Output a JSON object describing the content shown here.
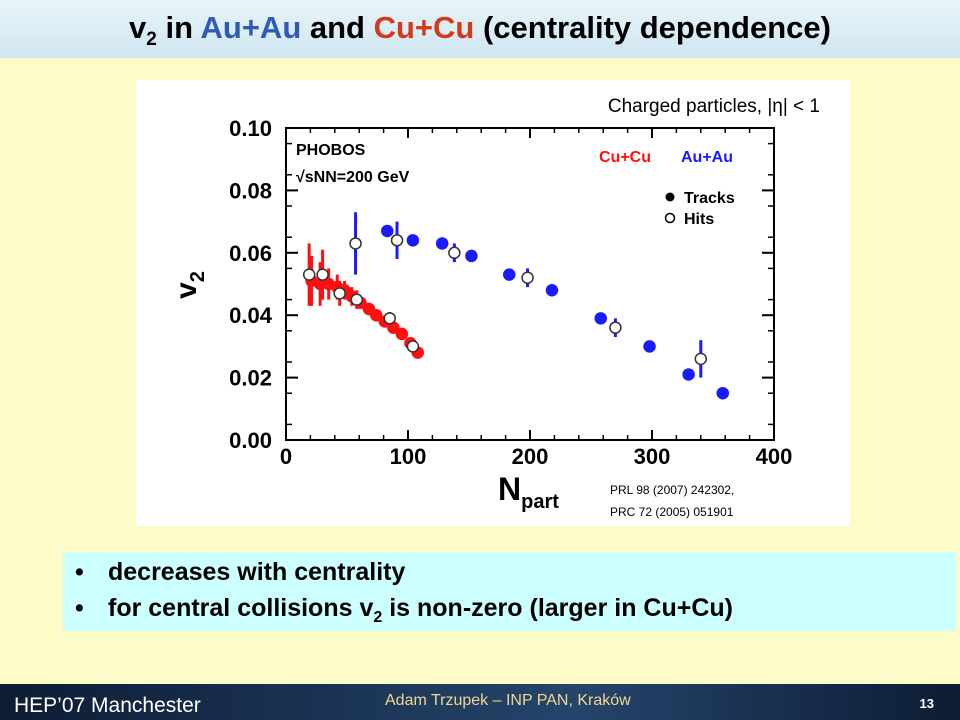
{
  "slide": {
    "title_prefix": "v",
    "title_sub": "2",
    "title_in": " in ",
    "title_auau": "Au+Au",
    "title_and": " and ",
    "title_cucu": "Cu+Cu",
    "title_rest": " (centrality dependence)"
  },
  "colors": {
    "auau": "#2f5bb5",
    "cucu": "#d43a1a",
    "blue_series": "#1a1aff",
    "red_series": "#ff1010"
  },
  "chart_data": {
    "type": "scatter",
    "header_note": "Charged particles, |η| < 1",
    "experiment": "PHOBOS",
    "energy": "√sNN=200 GeV",
    "xlabel": "N",
    "xlabel_sub": "part",
    "ylabel": "v",
    "ylabel_sub": "2",
    "xlim": [
      0,
      400
    ],
    "ylim": [
      0,
      0.1
    ],
    "x_ticks": [
      0,
      100,
      200,
      300,
      400
    ],
    "y_ticks": [
      "0.00",
      "0.02",
      "0.04",
      "0.06",
      "0.08",
      "0.10"
    ],
    "legend": {
      "cucu": "Cu+Cu",
      "auau": "Au+Au",
      "tracks": "Tracks",
      "hits": "Hits"
    },
    "reference_1": "PRL 98 (2007) 242302,",
    "reference_2": "PRC 72 (2005) 051901",
    "series": [
      {
        "name": "Au+Au",
        "marker": "Tracks",
        "color": "#1a1aff",
        "x": [
          83,
          104,
          128,
          152,
          183,
          218,
          258,
          298,
          330,
          358
        ],
        "y": [
          0.067,
          0.064,
          0.063,
          0.059,
          0.053,
          0.048,
          0.039,
          0.03,
          0.021,
          0.015
        ],
        "err": [
          0.001,
          0.001,
          0.001,
          0.001,
          0.001,
          0.001,
          0.001,
          0.001,
          0.001,
          0.001
        ]
      },
      {
        "name": "Au+Au",
        "marker": "Hits",
        "color": "#1a1aff",
        "x": [
          57,
          91,
          138,
          198,
          270,
          340
        ],
        "y": [
          0.063,
          0.064,
          0.06,
          0.052,
          0.036,
          0.026
        ],
        "err": [
          0.01,
          0.006,
          0.003,
          0.003,
          0.003,
          0.006
        ]
      },
      {
        "name": "Cu+Cu",
        "marker": "Tracks",
        "color": "#ff1010",
        "x": [
          21,
          28,
          35,
          42,
          48,
          54,
          61,
          68,
          74,
          81,
          88,
          95,
          102,
          108
        ],
        "y": [
          0.051,
          0.05,
          0.05,
          0.049,
          0.048,
          0.046,
          0.044,
          0.042,
          0.04,
          0.038,
          0.036,
          0.034,
          0.031,
          0.028
        ],
        "err": [
          0.008,
          0.007,
          0.005,
          0.004,
          0.003,
          0.003,
          0.002,
          0.002,
          0.002,
          0.001,
          0.001,
          0.001,
          0.001,
          0.001
        ]
      },
      {
        "name": "Cu+Cu",
        "marker": "Hits",
        "color": "#ff1010",
        "x": [
          19,
          30,
          44,
          58,
          85,
          104
        ],
        "y": [
          0.053,
          0.053,
          0.047,
          0.045,
          0.039,
          0.03
        ],
        "err": [
          0.01,
          0.008,
          0.004,
          0.003,
          0.002,
          0.002
        ]
      }
    ]
  },
  "bullets": {
    "b1": "decreases with centrality",
    "b2_pre": "for central collisions v",
    "b2_sub": "2",
    "b2_post": " is non-zero (larger in Cu+Cu)"
  },
  "footer": {
    "left": "HEP’07 Manchester",
    "middle": "Adam Trzupek – INP PAN, Kraków",
    "page_number": "13"
  }
}
